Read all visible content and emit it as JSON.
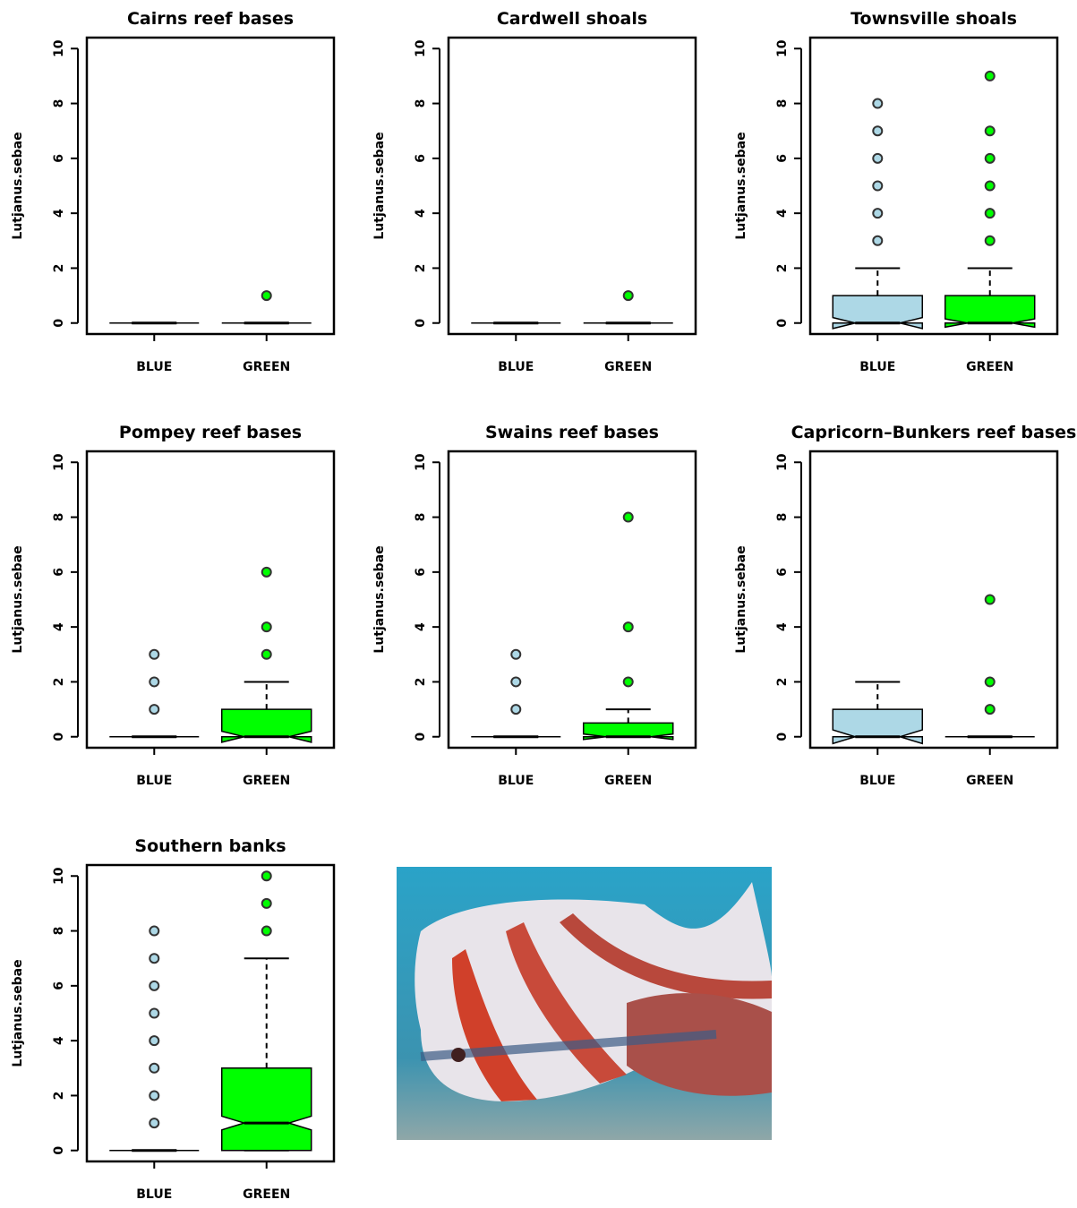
{
  "chart_data": [
    {
      "type": "box",
      "title": "Cairns reef bases",
      "y_label": "Lutjanus.sebae",
      "categories": [
        "BLUE",
        "GREEN"
      ],
      "boxes": [
        {
          "color": "#add8e6",
          "min": 0,
          "q1": 0,
          "median": 0,
          "q3": 0,
          "max": 0,
          "notch": [
            0,
            0
          ],
          "outliers": []
        },
        {
          "color": "#00ff00",
          "min": 0,
          "q1": 0,
          "median": 0,
          "q3": 0,
          "max": 0,
          "notch": [
            0,
            0
          ],
          "outliers": [
            1
          ]
        }
      ],
      "ylim": [
        -0.4,
        10.4
      ],
      "yticks": [
        0,
        2,
        4,
        6,
        8,
        10
      ]
    },
    {
      "type": "box",
      "title": "Cardwell shoals",
      "y_label": "Lutjanus.sebae",
      "categories": [
        "BLUE",
        "GREEN"
      ],
      "boxes": [
        {
          "color": "#add8e6",
          "min": 0,
          "q1": 0,
          "median": 0,
          "q3": 0,
          "max": 0,
          "notch": [
            0,
            0
          ],
          "outliers": []
        },
        {
          "color": "#00ff00",
          "min": 0,
          "q1": 0,
          "median": 0,
          "q3": 0,
          "max": 0,
          "notch": [
            0,
            0
          ],
          "outliers": [
            1
          ]
        }
      ],
      "ylim": [
        -0.4,
        10.4
      ],
      "yticks": [
        0,
        2,
        4,
        6,
        8,
        10
      ]
    },
    {
      "type": "box",
      "title": "Townsville shoals",
      "y_label": "Lutjanus.sebae",
      "categories": [
        "BLUE",
        "GREEN"
      ],
      "boxes": [
        {
          "color": "#add8e6",
          "min": 0,
          "q1": 0,
          "median": 0,
          "q3": 1,
          "max": 2,
          "notch": [
            -0.2,
            0.2
          ],
          "outliers": [
            3,
            4,
            5,
            6,
            7,
            8
          ]
        },
        {
          "color": "#00ff00",
          "min": 0,
          "q1": 0,
          "median": 0,
          "q3": 1,
          "max": 2,
          "notch": [
            -0.15,
            0.15
          ],
          "outliers": [
            3,
            4,
            5,
            6,
            7,
            9
          ]
        }
      ],
      "ylim": [
        -0.4,
        10.4
      ],
      "yticks": [
        0,
        2,
        4,
        6,
        8,
        10
      ]
    },
    {
      "type": "box",
      "title": "Pompey reef bases",
      "y_label": "Lutjanus.sebae",
      "categories": [
        "BLUE",
        "GREEN"
      ],
      "boxes": [
        {
          "color": "#add8e6",
          "min": 0,
          "q1": 0,
          "median": 0,
          "q3": 0,
          "max": 0,
          "notch": [
            0,
            0
          ],
          "outliers": [
            1,
            2,
            3
          ]
        },
        {
          "color": "#00ff00",
          "min": 0,
          "q1": 0,
          "median": 0,
          "q3": 1,
          "max": 2,
          "notch": [
            -0.2,
            0.2
          ],
          "outliers": [
            3,
            4,
            6
          ]
        }
      ],
      "ylim": [
        -0.4,
        10.4
      ],
      "yticks": [
        0,
        2,
        4,
        6,
        8,
        10
      ]
    },
    {
      "type": "box",
      "title": "Swains reef bases",
      "y_label": "Lutjanus.sebae",
      "categories": [
        "BLUE",
        "GREEN"
      ],
      "boxes": [
        {
          "color": "#add8e6",
          "min": 0,
          "q1": 0,
          "median": 0,
          "q3": 0,
          "max": 0,
          "notch": [
            0,
            0
          ],
          "outliers": [
            1,
            2,
            3
          ]
        },
        {
          "color": "#00ff00",
          "min": 0,
          "q1": 0,
          "median": 0,
          "q3": 0.5,
          "max": 1,
          "notch": [
            -0.1,
            0.1
          ],
          "outliers": [
            2,
            4,
            8
          ]
        }
      ],
      "ylim": [
        -0.4,
        10.4
      ],
      "yticks": [
        0,
        2,
        4,
        6,
        8,
        10
      ]
    },
    {
      "type": "box",
      "title": "Capricorn–Bunkers reef bases",
      "y_label": "Lutjanus.sebae",
      "categories": [
        "BLUE",
        "GREEN"
      ],
      "boxes": [
        {
          "color": "#add8e6",
          "min": 0,
          "q1": 0,
          "median": 0,
          "q3": 1,
          "max": 2,
          "notch": [
            -0.25,
            0.25
          ],
          "outliers": []
        },
        {
          "color": "#00ff00",
          "min": 0,
          "q1": 0,
          "median": 0,
          "q3": 0,
          "max": 0,
          "notch": [
            0,
            0
          ],
          "outliers": [
            1,
            2,
            5
          ]
        }
      ],
      "ylim": [
        -0.4,
        10.4
      ],
      "yticks": [
        0,
        2,
        4,
        6,
        8,
        10
      ]
    },
    {
      "type": "box",
      "title": "Southern banks",
      "y_label": "Lutjanus.sebae",
      "categories": [
        "BLUE",
        "GREEN"
      ],
      "boxes": [
        {
          "color": "#add8e6",
          "min": 0,
          "q1": 0,
          "median": 0,
          "q3": 0,
          "max": 0,
          "notch": [
            0,
            0
          ],
          "outliers": [
            1,
            2,
            3,
            4,
            5,
            6,
            7,
            8
          ]
        },
        {
          "color": "#00ff00",
          "min": 0,
          "q1": 0,
          "median": 1,
          "q3": 3,
          "max": 7,
          "notch": [
            0.75,
            1.25
          ],
          "outliers": [
            8,
            9,
            10
          ]
        }
      ],
      "ylim": [
        -0.4,
        10.4
      ],
      "yticks": [
        0,
        2,
        4,
        6,
        8,
        10
      ]
    }
  ]
}
